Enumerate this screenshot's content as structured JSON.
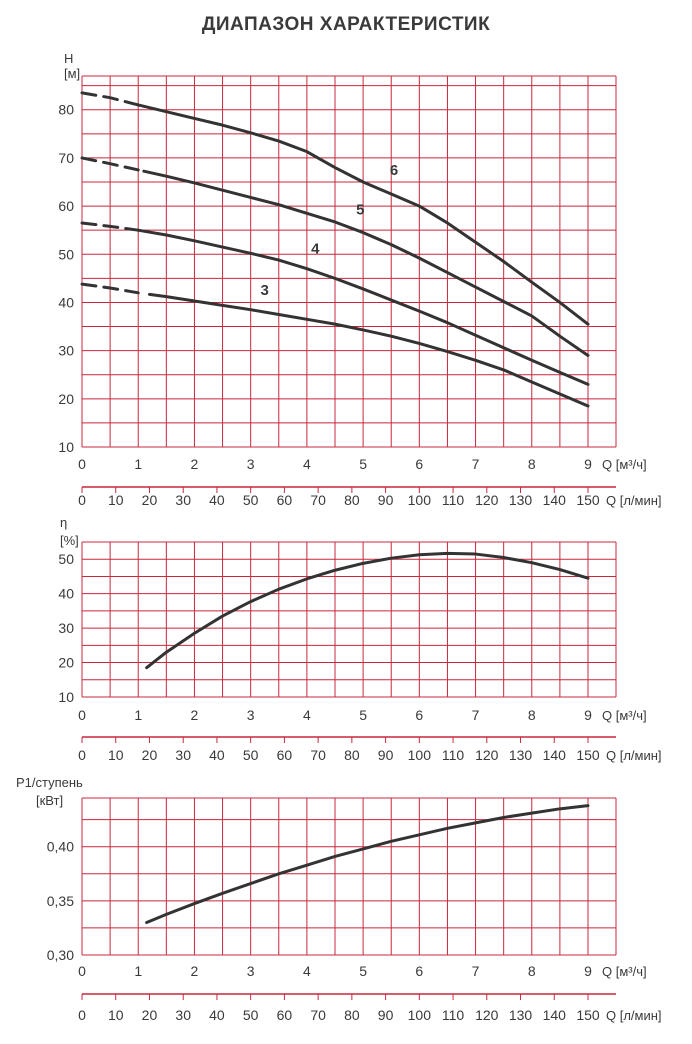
{
  "title": "ДИАПАЗОН ХАРАКТЕРИСТИК",
  "colors": {
    "grid": "#c8283c",
    "curve": "#333333",
    "text": "#3a3a3a"
  },
  "chart_data": [
    {
      "type": "line",
      "ylabel_top": "H",
      "yunit": "[м]",
      "xlabel": "Q [м³/ч]",
      "xlabel2": "Q [л/мин]",
      "xlim": [
        0,
        9
      ],
      "ylim": [
        10,
        87
      ],
      "yticks": [
        10,
        20,
        30,
        40,
        50,
        60,
        70,
        80
      ],
      "xticks": [
        0,
        1,
        2,
        3,
        4,
        5,
        6,
        7,
        8,
        9
      ],
      "xticks2": [
        0,
        10,
        20,
        30,
        40,
        50,
        60,
        70,
        80,
        90,
        100,
        110,
        120,
        130,
        140,
        150
      ],
      "grid": true,
      "series": [
        {
          "name": "3",
          "dashed_until": 1.2,
          "x": [
            0,
            0.5,
            1,
            1.5,
            2,
            2.5,
            3,
            3.5,
            4,
            4.5,
            5,
            5.5,
            6,
            6.5,
            7,
            7.5,
            8,
            8.5,
            9
          ],
          "y": [
            43.8,
            43,
            42,
            41.2,
            40.3,
            39.4,
            38.5,
            37.5,
            36.5,
            35.5,
            34.3,
            33,
            31.5,
            29.8,
            28,
            26,
            23.5,
            21,
            18.5
          ]
        },
        {
          "name": "4",
          "dashed_until": 1.0,
          "x": [
            0,
            0.5,
            1,
            1.5,
            2,
            2.5,
            3,
            3.5,
            4,
            4.5,
            5,
            5.5,
            6,
            6.5,
            7,
            7.5,
            8,
            8.5,
            9
          ],
          "y": [
            56.5,
            55.8,
            55,
            54,
            52.8,
            51.5,
            50.2,
            48.8,
            47,
            45,
            42.8,
            40.5,
            38.2,
            35.8,
            33.2,
            30.6,
            28,
            25.5,
            23
          ]
        },
        {
          "name": "5",
          "dashed_until": 1.1,
          "x": [
            0,
            0.5,
            1,
            1.5,
            2,
            2.5,
            3,
            3.5,
            4,
            4.5,
            5,
            5.5,
            6,
            6.5,
            7,
            7.5,
            8,
            8.5,
            9
          ],
          "y": [
            70,
            68.8,
            67.5,
            66.2,
            64.8,
            63.3,
            61.8,
            60.3,
            58.5,
            56.7,
            54.5,
            52,
            49.2,
            46.2,
            43.2,
            40.2,
            37.2,
            33,
            29
          ]
        },
        {
          "name": "6",
          "dashed_until": 1.0,
          "x": [
            0,
            0.5,
            1,
            1.5,
            2,
            2.5,
            3,
            3.5,
            4,
            4.5,
            5,
            5.5,
            6,
            6.5,
            7,
            7.5,
            8,
            8.5,
            9
          ],
          "y": [
            83.5,
            82.5,
            81,
            79.6,
            78.2,
            76.8,
            75.2,
            73.5,
            71.3,
            68,
            65,
            62.5,
            60,
            56.5,
            52.5,
            48.5,
            44.2,
            40,
            35.5
          ]
        }
      ],
      "labels": [
        {
          "text": "3",
          "x": 3.25,
          "y": 41.5
        },
        {
          "text": "4",
          "x": 4.15,
          "y": 50.2
        },
        {
          "text": "5",
          "x": 4.95,
          "y": 58.3
        },
        {
          "text": "6",
          "x": 5.55,
          "y": 66.5
        }
      ]
    },
    {
      "type": "line",
      "ylabel_top": "η",
      "yunit": "[%]",
      "xlabel": "Q [м³/ч]",
      "xlabel2": "Q [л/мин]",
      "xlim": [
        0,
        9
      ],
      "ylim": [
        10,
        55
      ],
      "yticks": [
        10,
        20,
        30,
        40,
        50
      ],
      "xticks": [
        0,
        1,
        2,
        3,
        4,
        5,
        6,
        7,
        8,
        9
      ],
      "xticks2": [
        0,
        10,
        20,
        30,
        40,
        50,
        60,
        70,
        80,
        90,
        100,
        110,
        120,
        130,
        140,
        150
      ],
      "grid": true,
      "series": [
        {
          "x": [
            1.15,
            1.5,
            2,
            2.5,
            3,
            3.5,
            4,
            4.5,
            5,
            5.5,
            6,
            6.5,
            7,
            7.5,
            8,
            8.5,
            9
          ],
          "y": [
            18.5,
            23,
            28.5,
            33.5,
            37.7,
            41.3,
            44.3,
            46.8,
            48.8,
            50.3,
            51.3,
            51.7,
            51.5,
            50.5,
            49,
            47,
            44.5
          ]
        }
      ]
    },
    {
      "type": "line",
      "ylabel_top": "P1/ступень",
      "yunit": "[кВт]",
      "xlabel": "Q [м³/ч]",
      "xlabel2": "Q [л/мин]",
      "xlim": [
        0,
        9
      ],
      "ylim": [
        0.3,
        0.445
      ],
      "yticks": [
        0.3,
        0.35,
        0.4
      ],
      "ytick_labels": [
        "0,30",
        "0,35",
        "0,40"
      ],
      "xticks": [
        0,
        1,
        2,
        3,
        4,
        5,
        6,
        7,
        8,
        9
      ],
      "xticks2": [
        0,
        10,
        20,
        30,
        40,
        50,
        60,
        70,
        80,
        90,
        100,
        110,
        120,
        130,
        140,
        150
      ],
      "grid": true,
      "series": [
        {
          "x": [
            1.15,
            1.5,
            2,
            2.5,
            3,
            3.5,
            4,
            4.5,
            5,
            5.5,
            6,
            6.5,
            7,
            7.5,
            8,
            8.5,
            9
          ],
          "y": [
            0.33,
            0.3375,
            0.3475,
            0.357,
            0.366,
            0.375,
            0.383,
            0.391,
            0.398,
            0.405,
            0.411,
            0.417,
            0.422,
            0.427,
            0.431,
            0.435,
            0.438
          ]
        }
      ]
    }
  ]
}
